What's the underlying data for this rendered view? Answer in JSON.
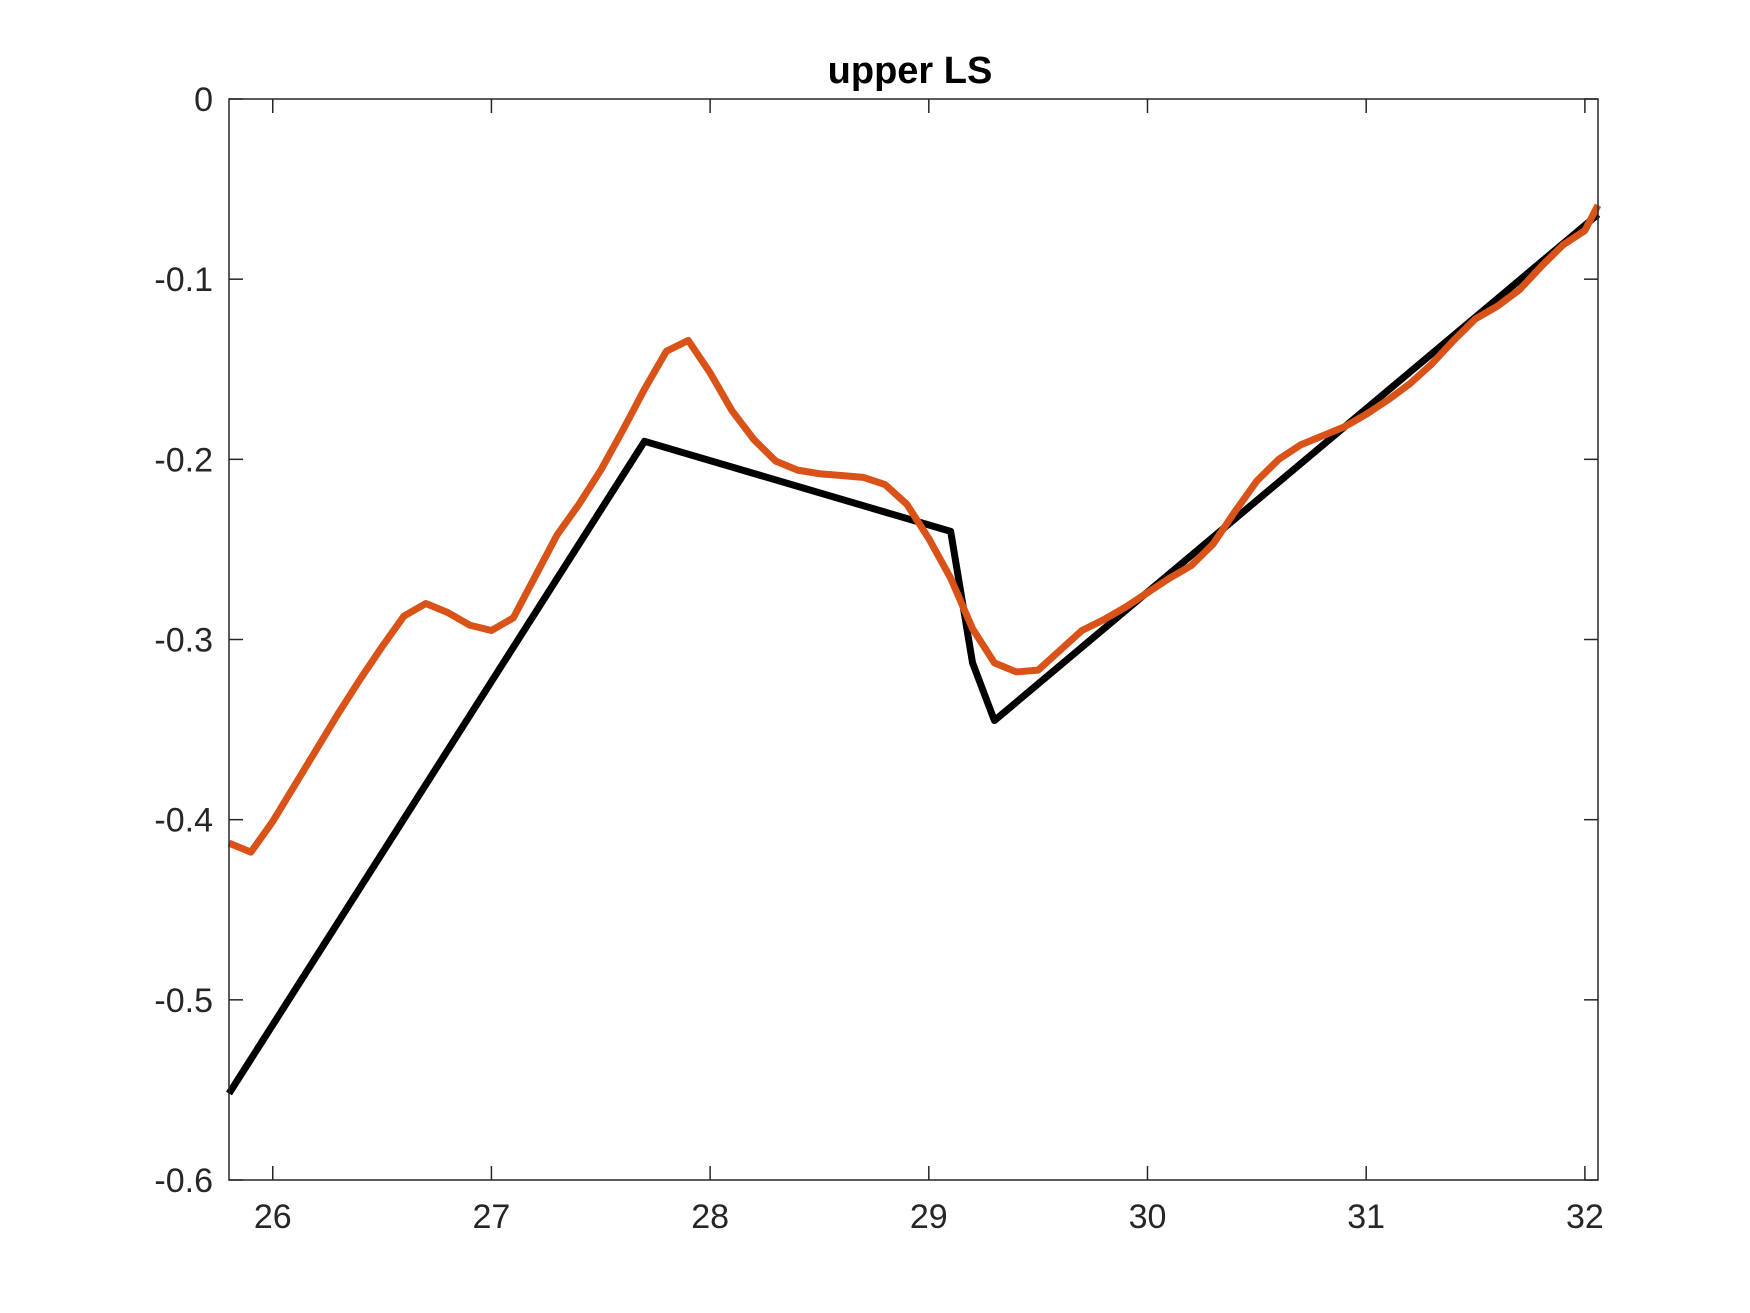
{
  "chart_data": {
    "type": "line",
    "title": "upper LS",
    "xlabel": "",
    "ylabel": "",
    "xlim": [
      25.8,
      32.06
    ],
    "ylim": [
      -0.6,
      0
    ],
    "xticks": [
      26,
      27,
      28,
      29,
      30,
      31,
      32
    ],
    "yticks": [
      0,
      -0.1,
      -0.2,
      -0.3,
      -0.4,
      -0.5,
      -0.6
    ],
    "xtick_labels": [
      "26",
      "27",
      "28",
      "29",
      "30",
      "31",
      "32"
    ],
    "ytick_labels": [
      "0",
      "-0.1",
      "-0.2",
      "-0.3",
      "-0.4",
      "-0.5",
      "-0.6"
    ],
    "grid": false,
    "box": true,
    "series": [
      {
        "color": "#000000",
        "x": [
          25.8,
          27.7,
          29.1,
          29.2,
          29.3,
          32.06
        ],
        "y": [
          -0.552,
          -0.19,
          -0.24,
          -0.313,
          -0.345,
          -0.064
        ]
      },
      {
        "color": "#D95319",
        "x": [
          25.8,
          25.9,
          26.0,
          26.1,
          26.2,
          26.3,
          26.4,
          26.5,
          26.6,
          26.7,
          26.8,
          26.9,
          27.0,
          27.1,
          27.2,
          27.3,
          27.4,
          27.5,
          27.6,
          27.7,
          27.8,
          27.9,
          28.0,
          28.1,
          28.2,
          28.3,
          28.4,
          28.5,
          28.6,
          28.7,
          28.8,
          28.9,
          29.0,
          29.1,
          29.2,
          29.3,
          29.4,
          29.5,
          29.6,
          29.7,
          29.8,
          29.9,
          30.0,
          30.1,
          30.2,
          30.3,
          30.4,
          30.5,
          30.6,
          30.7,
          30.8,
          30.9,
          31.0,
          31.1,
          31.2,
          31.3,
          31.4,
          31.5,
          31.6,
          31.7,
          31.8,
          31.9,
          32.0,
          32.06
        ],
        "y": [
          -0.413,
          -0.418,
          -0.401,
          -0.381,
          -0.361,
          -0.341,
          -0.322,
          -0.304,
          -0.287,
          -0.28,
          -0.285,
          -0.292,
          -0.295,
          -0.288,
          -0.265,
          -0.242,
          -0.225,
          -0.206,
          -0.184,
          -0.161,
          -0.14,
          -0.134,
          -0.152,
          -0.173,
          -0.189,
          -0.201,
          -0.206,
          -0.208,
          -0.209,
          -0.21,
          -0.214,
          -0.225,
          -0.244,
          -0.266,
          -0.294,
          -0.313,
          -0.318,
          -0.317,
          -0.306,
          -0.295,
          -0.289,
          -0.282,
          -0.274,
          -0.266,
          -0.259,
          -0.247,
          -0.229,
          -0.212,
          -0.2,
          -0.192,
          -0.187,
          -0.182,
          -0.175,
          -0.167,
          -0.158,
          -0.147,
          -0.134,
          -0.122,
          -0.115,
          -0.106,
          -0.093,
          -0.081,
          -0.073,
          -0.059
        ]
      }
    ]
  }
}
